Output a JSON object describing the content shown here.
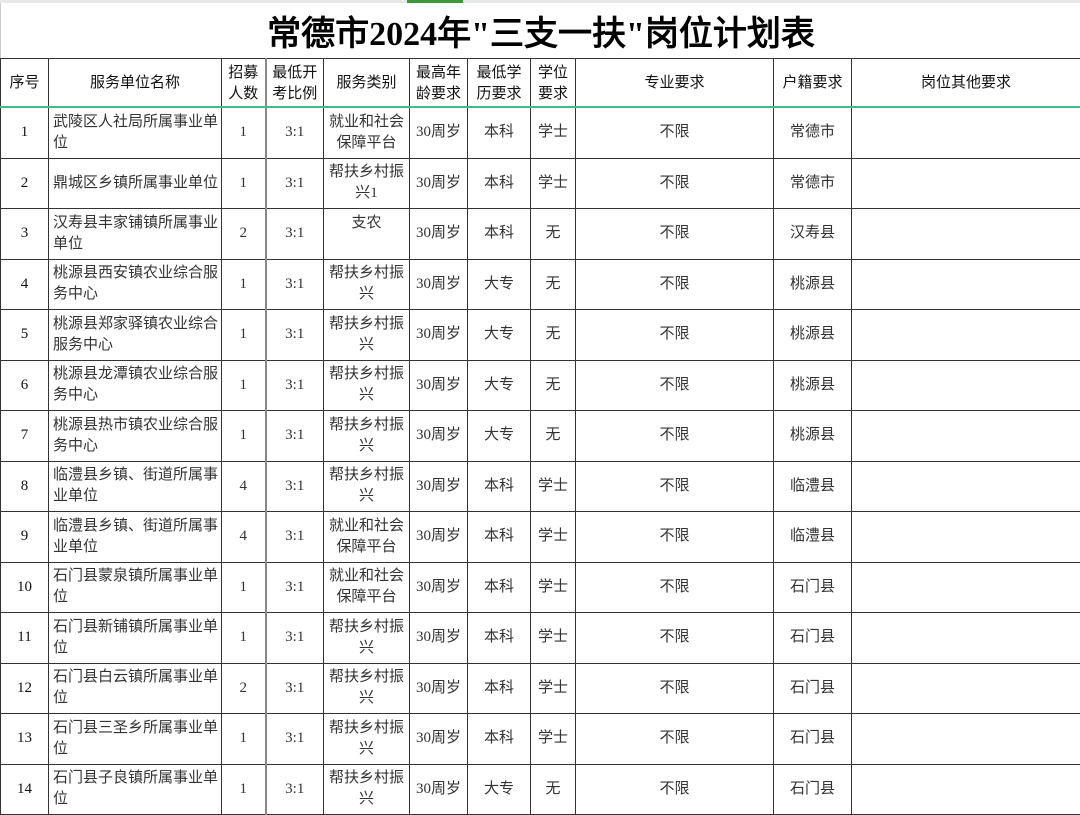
{
  "title": "常德市2024年\"三支一扶\"岗位计划表",
  "headers": [
    "序号",
    "服务单位名称",
    "招募人数",
    "最低开考比例",
    "服务类别",
    "最高年龄要求",
    "最低学历要求",
    "学位要求",
    "专业要求",
    "户籍要求",
    "岗位其他要求"
  ],
  "rows": [
    [
      "1",
      "武陵区人社局所属事业单位",
      "1",
      "3:1",
      "就业和社会保障平台",
      "30周岁",
      "本科",
      "学士",
      "不限",
      "常德市",
      ""
    ],
    [
      "2",
      "鼎城区乡镇所属事业单位",
      "1",
      "3:1",
      "帮扶乡村振兴1",
      "30周岁",
      "本科",
      "学士",
      "不限",
      "常德市",
      ""
    ],
    [
      "3",
      "汉寿县丰家铺镇所属事业单位",
      "2",
      "3:1",
      "支农",
      "30周岁",
      "本科",
      "无",
      "不限",
      "汉寿县",
      ""
    ],
    [
      "4",
      "桃源县西安镇农业综合服务中心",
      "1",
      "3:1",
      "帮扶乡村振兴",
      "30周岁",
      "大专",
      "无",
      "不限",
      "桃源县",
      ""
    ],
    [
      "5",
      "桃源县郑家驿镇农业综合服务中心",
      "1",
      "3:1",
      "帮扶乡村振兴",
      "30周岁",
      "大专",
      "无",
      "不限",
      "桃源县",
      ""
    ],
    [
      "6",
      "桃源县龙潭镇农业综合服务中心",
      "1",
      "3:1",
      "帮扶乡村振兴",
      "30周岁",
      "大专",
      "无",
      "不限",
      "桃源县",
      ""
    ],
    [
      "7",
      "桃源县热市镇农业综合服务中心",
      "1",
      "3:1",
      "帮扶乡村振兴",
      "30周岁",
      "大专",
      "无",
      "不限",
      "桃源县",
      ""
    ],
    [
      "8",
      "临澧县乡镇、街道所属事业单位",
      "4",
      "3:1",
      "帮扶乡村振兴",
      "30周岁",
      "本科",
      "学士",
      "不限",
      "临澧县",
      ""
    ],
    [
      "9",
      "临澧县乡镇、街道所属事业单位",
      "4",
      "3:1",
      "就业和社会保障平台",
      "30周岁",
      "本科",
      "学士",
      "不限",
      "临澧县",
      ""
    ],
    [
      "10",
      "石门县蒙泉镇所属事业单位",
      "1",
      "3:1",
      "就业和社会保障平台",
      "30周岁",
      "本科",
      "学士",
      "不限",
      "石门县",
      ""
    ],
    [
      "11",
      "石门县新铺镇所属事业单位",
      "1",
      "3:1",
      "帮扶乡村振兴",
      "30周岁",
      "本科",
      "学士",
      "不限",
      "石门县",
      ""
    ],
    [
      "12",
      "石门县白云镇所属事业单位",
      "2",
      "3:1",
      "帮扶乡村振兴",
      "30周岁",
      "本科",
      "学士",
      "不限",
      "石门县",
      ""
    ],
    [
      "13",
      "石门县三圣乡所属事业单位",
      "1",
      "3:1",
      "帮扶乡村振兴",
      "30周岁",
      "本科",
      "学士",
      "不限",
      "石门县",
      ""
    ],
    [
      "14",
      "石门县子良镇所属事业单位",
      "1",
      "3:1",
      "帮扶乡村振兴",
      "30周岁",
      "大专",
      "无",
      "不限",
      "石门县",
      ""
    ]
  ],
  "colors": {
    "header_rule": "#3cbf8a",
    "tab_active": "#3a9a3a"
  }
}
